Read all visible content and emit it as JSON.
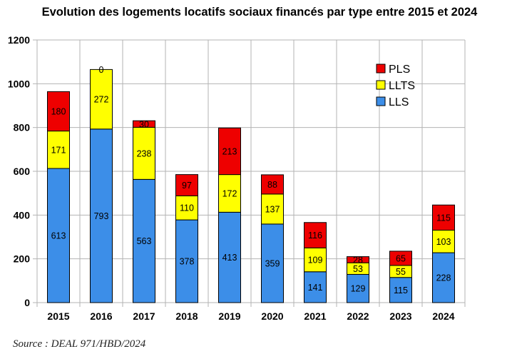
{
  "chart_data": {
    "type": "bar",
    "stacked": true,
    "title": "Evolution des logements locatifs sociaux financés par type entre 2015 et 2024",
    "categories": [
      "2015",
      "2016",
      "2017",
      "2018",
      "2019",
      "2020",
      "2021",
      "2022",
      "2023",
      "2024"
    ],
    "series": [
      {
        "name": "LLS",
        "color": "#3c8ee8",
        "values": [
          613,
          793,
          563,
          378,
          413,
          359,
          141,
          129,
          115,
          228
        ]
      },
      {
        "name": "LLTS",
        "color": "#ffff00",
        "values": [
          171,
          272,
          238,
          110,
          172,
          137,
          109,
          53,
          55,
          103
        ]
      },
      {
        "name": "PLS",
        "color": "#ee0000",
        "values": [
          180,
          0,
          30,
          97,
          213,
          88,
          116,
          28,
          65,
          115
        ]
      }
    ],
    "legend_order": [
      "PLS",
      "LLTS",
      "LLS"
    ],
    "legend_position": "top-right",
    "ylim": [
      0,
      1200
    ],
    "yticks": [
      "0",
      "200",
      "400",
      "600",
      "800",
      "1000",
      "1200"
    ],
    "grid": true,
    "xlabel": "",
    "ylabel": ""
  },
  "source": "Source : DEAL 971/HBD/2024"
}
